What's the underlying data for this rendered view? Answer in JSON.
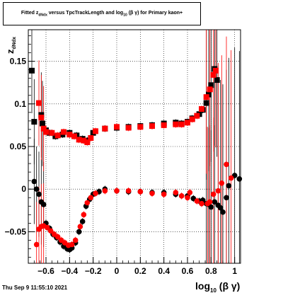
{
  "chart_data": {
    "type": "scatter",
    "title": {
      "prefix": "Fitted  z",
      "z_sub": "dNdx",
      "middle": " versus TpcTrackLength and log",
      "log_sub": "10",
      "suffix": " (β γ) for Primary kaon+"
    },
    "xlabel": {
      "main": "log",
      "sub": "10",
      "rest": " (β γ)"
    },
    "ylabel": {
      "main": "z",
      "sub": "dNdx"
    },
    "xlim": [
      -0.75,
      1.05
    ],
    "ylim": [
      -0.087,
      0.187
    ],
    "x_ticks": [
      {
        "v": -0.6,
        "label": "−0.6"
      },
      {
        "v": -0.4,
        "label": "−0.4"
      },
      {
        "v": -0.2,
        "label": "−0.2"
      },
      {
        "v": 0,
        "label": "0"
      },
      {
        "v": 0.2,
        "label": "0.2"
      },
      {
        "v": 0.4,
        "label": "0.4"
      },
      {
        "v": 0.6,
        "label": "0.6"
      },
      {
        "v": 0.8,
        "label": "0.8"
      },
      {
        "v": 1,
        "label": "1"
      }
    ],
    "y_ticks": [
      {
        "v": -0.05,
        "label": "−0.05"
      },
      {
        "v": 0,
        "label": "0"
      },
      {
        "v": 0.05,
        "label": "0.05"
      },
      {
        "v": 0.1,
        "label": "0.1"
      },
      {
        "v": 0.15,
        "label": "0.15"
      }
    ],
    "grid": true,
    "series": [
      {
        "color": "#000000",
        "marker": "square",
        "points": [
          [
            -0.72,
            0.139
          ],
          [
            -0.7,
            0.079
          ],
          [
            -0.64,
            0.087
          ],
          [
            -0.63,
            0.077
          ],
          [
            -0.6,
            0.069
          ],
          [
            -0.57,
            0.066
          ],
          [
            -0.52,
            0.062
          ],
          [
            -0.46,
            0.064
          ],
          [
            -0.4,
            0.066
          ],
          [
            -0.34,
            0.063
          ],
          [
            -0.29,
            0.059
          ],
          [
            -0.25,
            0.057
          ],
          [
            -0.2,
            0.066
          ],
          [
            -0.1,
            0.071
          ],
          [
            0.0,
            0.072
          ],
          [
            0.1,
            0.073
          ],
          [
            0.2,
            0.074
          ],
          [
            0.3,
            0.075
          ],
          [
            0.4,
            0.077
          ],
          [
            0.5,
            0.078
          ],
          [
            0.55,
            0.077
          ],
          [
            0.6,
            0.079
          ],
          [
            0.64,
            0.083
          ],
          [
            0.7,
            0.088
          ],
          [
            0.73,
            0.093
          ],
          [
            0.76,
            0.101
          ],
          [
            0.78,
            0.111
          ],
          [
            0.8,
            0.122
          ],
          [
            0.83,
            0.141
          ],
          [
            0.85,
            0.128
          ]
        ]
      },
      {
        "color": "#000000",
        "marker": "circle",
        "points": [
          [
            -0.7,
            0.009
          ],
          [
            -0.68,
            0.0
          ],
          [
            -0.66,
            -0.006
          ],
          [
            -0.64,
            -0.015
          ],
          [
            -0.62,
            -0.018
          ],
          [
            -0.6,
            -0.04
          ],
          [
            -0.57,
            -0.046
          ],
          [
            -0.54,
            -0.053
          ],
          [
            -0.51,
            -0.057
          ],
          [
            -0.48,
            -0.062
          ],
          [
            -0.45,
            -0.067
          ],
          [
            -0.42,
            -0.07
          ],
          [
            -0.4,
            -0.071
          ],
          [
            -0.38,
            -0.069
          ],
          [
            -0.35,
            -0.063
          ],
          [
            -0.32,
            -0.05
          ],
          [
            -0.29,
            -0.038
          ],
          [
            -0.26,
            -0.02
          ],
          [
            -0.23,
            -0.012
          ],
          [
            -0.2,
            -0.006
          ],
          [
            -0.15,
            -0.003
          ],
          [
            -0.1,
            0.0
          ],
          [
            0.0,
            -0.002
          ],
          [
            0.1,
            -0.003
          ],
          [
            0.2,
            -0.003
          ],
          [
            0.3,
            -0.004
          ],
          [
            0.4,
            -0.004
          ],
          [
            0.5,
            -0.006
          ],
          [
            0.6,
            -0.008
          ],
          [
            0.65,
            -0.011
          ],
          [
            0.7,
            -0.014
          ],
          [
            0.73,
            -0.013
          ],
          [
            0.76,
            -0.017
          ],
          [
            0.78,
            -0.018
          ],
          [
            0.8,
            -0.021
          ],
          [
            0.83,
            -0.015
          ],
          [
            0.86,
            -0.019
          ],
          [
            0.88,
            -0.022
          ],
          [
            0.9,
            -0.027
          ],
          [
            0.93,
            -0.01
          ],
          [
            0.95,
            0.004
          ],
          [
            1.0,
            0.016
          ],
          [
            1.04,
            0.012
          ]
        ]
      },
      {
        "color": "#ff0000",
        "marker": "square",
        "points": [
          [
            -0.66,
            0.101
          ],
          [
            -0.64,
            0.084
          ],
          [
            -0.62,
            0.071
          ],
          [
            -0.6,
            0.067
          ],
          [
            -0.55,
            0.066
          ],
          [
            -0.5,
            0.063
          ],
          [
            -0.45,
            0.067
          ],
          [
            -0.4,
            0.064
          ],
          [
            -0.36,
            0.062
          ],
          [
            -0.32,
            0.058
          ],
          [
            -0.28,
            0.057
          ],
          [
            -0.25,
            0.055
          ],
          [
            -0.22,
            0.06
          ],
          [
            -0.18,
            0.068
          ],
          [
            -0.1,
            0.071
          ],
          [
            0.0,
            0.073
          ],
          [
            0.1,
            0.072
          ],
          [
            0.2,
            0.073
          ],
          [
            0.3,
            0.074
          ],
          [
            0.4,
            0.075
          ],
          [
            0.5,
            0.076
          ],
          [
            0.55,
            0.076
          ],
          [
            0.6,
            0.078
          ],
          [
            0.64,
            0.082
          ],
          [
            0.68,
            0.086
          ],
          [
            0.72,
            0.094
          ],
          [
            0.76,
            0.108
          ],
          [
            0.79,
            0.117
          ],
          [
            0.82,
            0.134
          ],
          [
            0.84,
            0.139
          ]
        ]
      },
      {
        "color": "#ff0000",
        "marker": "circle",
        "points": [
          [
            -0.68,
            -0.065
          ],
          [
            -0.66,
            -0.047
          ],
          [
            -0.64,
            -0.044
          ],
          [
            -0.62,
            -0.043
          ],
          [
            -0.59,
            -0.045
          ],
          [
            -0.56,
            -0.049
          ],
          [
            -0.53,
            -0.053
          ],
          [
            -0.5,
            -0.056
          ],
          [
            -0.47,
            -0.06
          ],
          [
            -0.44,
            -0.063
          ],
          [
            -0.41,
            -0.066
          ],
          [
            -0.38,
            -0.065
          ],
          [
            -0.35,
            -0.06
          ],
          [
            -0.31,
            -0.044
          ],
          [
            -0.28,
            -0.03
          ],
          [
            -0.25,
            -0.016
          ],
          [
            -0.22,
            -0.01
          ],
          [
            -0.18,
            -0.005
          ],
          [
            -0.1,
            -0.002
          ],
          [
            0.0,
            -0.002
          ],
          [
            0.1,
            -0.002
          ],
          [
            0.2,
            -0.003
          ],
          [
            0.3,
            -0.005
          ],
          [
            0.4,
            -0.006
          ],
          [
            0.5,
            -0.004
          ],
          [
            0.55,
            -0.008
          ],
          [
            0.6,
            -0.01
          ],
          [
            0.62,
            -0.004
          ],
          [
            0.68,
            -0.014
          ],
          [
            0.72,
            -0.017
          ],
          [
            0.77,
            -0.017
          ],
          [
            0.79,
            -0.015
          ],
          [
            0.82,
            -0.006
          ],
          [
            0.86,
            -0.002
          ],
          [
            0.89,
            0.007
          ],
          [
            0.93,
            0.029
          ],
          [
            0.97,
            0.013
          ]
        ]
      }
    ]
  },
  "footer": {
    "timestamp": "Thu Sep  9 11:55:10 2021"
  }
}
